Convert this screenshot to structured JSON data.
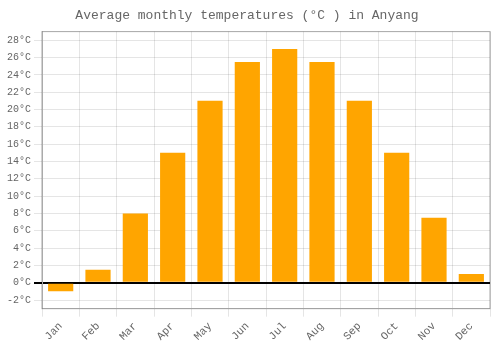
{
  "chart_data": {
    "type": "bar",
    "title": "Average monthly temperatures (°C ) in Anyang",
    "categories": [
      "Jan",
      "Feb",
      "Mar",
      "Apr",
      "May",
      "Jun",
      "Jul",
      "Aug",
      "Sep",
      "Oct",
      "Nov",
      "Dec"
    ],
    "values": [
      -1,
      1.5,
      8,
      15,
      21,
      25.5,
      27,
      25.5,
      21,
      15,
      7.5,
      1
    ],
    "color": "#FFA500",
    "ylim": [
      -3,
      29
    ],
    "yticks": [
      {
        "value": -2,
        "label": "-2°C"
      },
      {
        "value": 0,
        "label": "0°C"
      },
      {
        "value": 2,
        "label": "2°C"
      },
      {
        "value": 4,
        "label": "4°C"
      },
      {
        "value": 6,
        "label": "6°C"
      },
      {
        "value": 8,
        "label": "8°C"
      },
      {
        "value": 10,
        "label": "10°C"
      },
      {
        "value": 12,
        "label": "12°C"
      },
      {
        "value": 14,
        "label": "14°C"
      },
      {
        "value": 16,
        "label": "16°C"
      },
      {
        "value": 18,
        "label": "18°C"
      },
      {
        "value": 20,
        "label": "20°C"
      },
      {
        "value": 22,
        "label": "22°C"
      },
      {
        "value": 24,
        "label": "24°C"
      },
      {
        "value": 26,
        "label": "26°C"
      },
      {
        "value": 28,
        "label": "28°C"
      }
    ],
    "grid": true
  }
}
